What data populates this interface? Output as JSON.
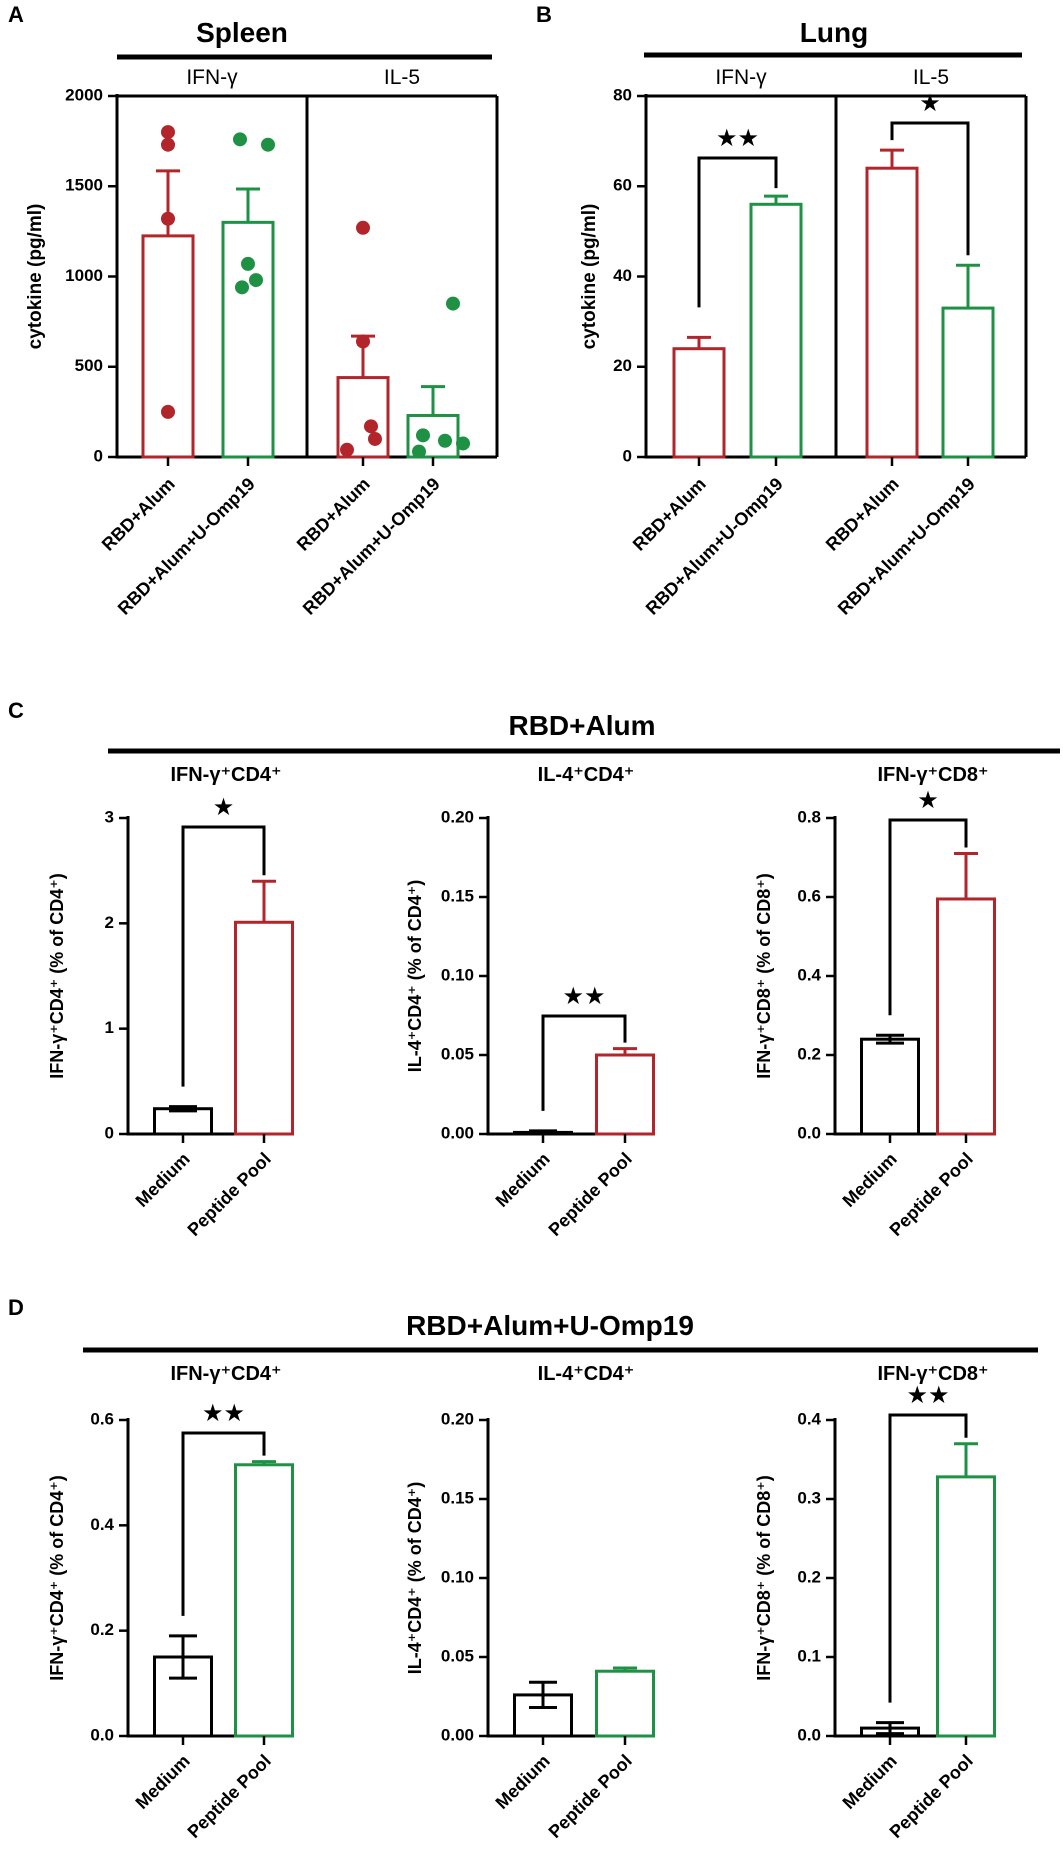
{
  "colors": {
    "red": "#B2262B",
    "green": "#1E9145",
    "black": "#000000"
  },
  "chart_data": [
    {
      "id": "A",
      "type": "bar",
      "panel_label": "A",
      "title": "Spleen",
      "ylabel": "cytokine (pg/ml)",
      "ylim": [
        0,
        2000
      ],
      "yticks": [
        0,
        500,
        1000,
        1500,
        2000
      ],
      "groups": [
        "IFN-γ",
        "IL-5"
      ],
      "categories": [
        "RBD+Alum",
        "RBD+Alum+U-Omp19",
        "RBD+Alum",
        "RBD+Alum+U-Omp19"
      ],
      "values": [
        1225,
        1300,
        440,
        230
      ],
      "errors": [
        360,
        185,
        230,
        160
      ],
      "colors": [
        "red",
        "green",
        "red",
        "green"
      ],
      "points": [
        [
          1800,
          1730,
          1320,
          250
        ],
        [
          1760,
          1730,
          1070,
          980,
          940
        ],
        [
          1270,
          640,
          170,
          100,
          40
        ],
        [
          850,
          120,
          90,
          75,
          30
        ]
      ],
      "significance": []
    },
    {
      "id": "B",
      "type": "bar",
      "panel_label": "B",
      "title": "Lung",
      "ylabel": "cytokine (pg/ml)",
      "ylim": [
        0,
        80
      ],
      "yticks": [
        0,
        20,
        40,
        60,
        80
      ],
      "groups": [
        "IFN-γ",
        "IL-5"
      ],
      "categories": [
        "RBD+Alum",
        "RBD+Alum+U-Omp19",
        "RBD+Alum",
        "RBD+Alum+U-Omp19"
      ],
      "values": [
        24,
        56,
        64,
        33
      ],
      "errors": [
        2.5,
        1.8,
        4,
        9.5
      ],
      "colors": [
        "red",
        "green",
        "red",
        "green"
      ],
      "points": [],
      "significance": [
        {
          "from": 0,
          "to": 1,
          "stars": "★★"
        },
        {
          "from": 2,
          "to": 3,
          "stars": "★"
        }
      ]
    },
    {
      "id": "C",
      "type": "bar",
      "panel_label": "C",
      "title": "RBD+Alum",
      "panels": [
        {
          "subtitle": "IFN-γ⁺CD4⁺",
          "ylabel": "IFN-γ⁺CD4⁺ (% of CD4⁺)",
          "ylim": [
            0,
            3
          ],
          "yticks": [
            "0",
            "1",
            "2",
            "3"
          ],
          "categories": [
            "Medium",
            "Peptide Pool"
          ],
          "values": [
            0.24,
            2.01
          ],
          "errors": [
            0.02,
            0.39
          ],
          "colors": [
            "black",
            "red"
          ],
          "significance": {
            "stars": "★"
          }
        },
        {
          "subtitle": "IL-4⁺CD4⁺",
          "ylabel": "IL-4⁺CD4⁺ (% of CD4⁺)",
          "ylim": [
            0,
            0.2
          ],
          "yticks": [
            "0.00",
            "0.05",
            "0.10",
            "0.15",
            "0.20"
          ],
          "categories": [
            "Medium",
            "Peptide Pool"
          ],
          "values": [
            0.001,
            0.05
          ],
          "errors": [
            0.001,
            0.004
          ],
          "colors": [
            "black",
            "red"
          ],
          "significance": {
            "stars": "★★"
          }
        },
        {
          "subtitle": "IFN-γ⁺CD8⁺",
          "ylabel": "IFN-γ⁺CD8⁺ (% of CD8⁺)",
          "ylim": [
            0,
            0.8
          ],
          "yticks": [
            "0.0",
            "0.2",
            "0.4",
            "0.6",
            "0.8"
          ],
          "categories": [
            "Medium",
            "Peptide Pool"
          ],
          "values": [
            0.24,
            0.595
          ],
          "errors": [
            0.01,
            0.115
          ],
          "colors": [
            "black",
            "red"
          ],
          "significance": {
            "stars": "★"
          }
        }
      ]
    },
    {
      "id": "D",
      "type": "bar",
      "panel_label": "D",
      "title": "RBD+Alum+U-Omp19",
      "panels": [
        {
          "subtitle": "IFN-γ⁺CD4⁺",
          "ylabel": "IFN-γ⁺CD4⁺ (% of CD4⁺)",
          "ylim": [
            0,
            0.6
          ],
          "yticks": [
            "0.0",
            "0.2",
            "0.4",
            "0.6"
          ],
          "categories": [
            "Medium",
            "Peptide Pool"
          ],
          "values": [
            0.15,
            0.515
          ],
          "errors": [
            0.04,
            0.006
          ],
          "colors": [
            "black",
            "green"
          ],
          "significance": {
            "stars": "★★"
          }
        },
        {
          "subtitle": "IL-4⁺CD4⁺",
          "ylabel": "IL-4⁺CD4⁺ (% of CD4⁺)",
          "ylim": [
            0,
            0.2
          ],
          "yticks": [
            "0.00",
            "0.05",
            "0.10",
            "0.15",
            "0.20"
          ],
          "categories": [
            "Medium",
            "Peptide Pool"
          ],
          "values": [
            0.026,
            0.041
          ],
          "errors": [
            0.008,
            0.002
          ],
          "colors": [
            "black",
            "green"
          ],
          "significance": null
        },
        {
          "subtitle": "IFN-γ⁺CD8⁺",
          "ylabel": "IFN-γ⁺CD8⁺ (% of CD8⁺)",
          "ylim": [
            0,
            0.4
          ],
          "yticks": [
            "0.0",
            "0.1",
            "0.2",
            "0.3",
            "0.4"
          ],
          "categories": [
            "Medium",
            "Peptide Pool"
          ],
          "values": [
            0.01,
            0.328
          ],
          "errors": [
            0.007,
            0.042
          ],
          "colors": [
            "black",
            "green"
          ],
          "significance": {
            "stars": "★★"
          }
        }
      ]
    }
  ]
}
